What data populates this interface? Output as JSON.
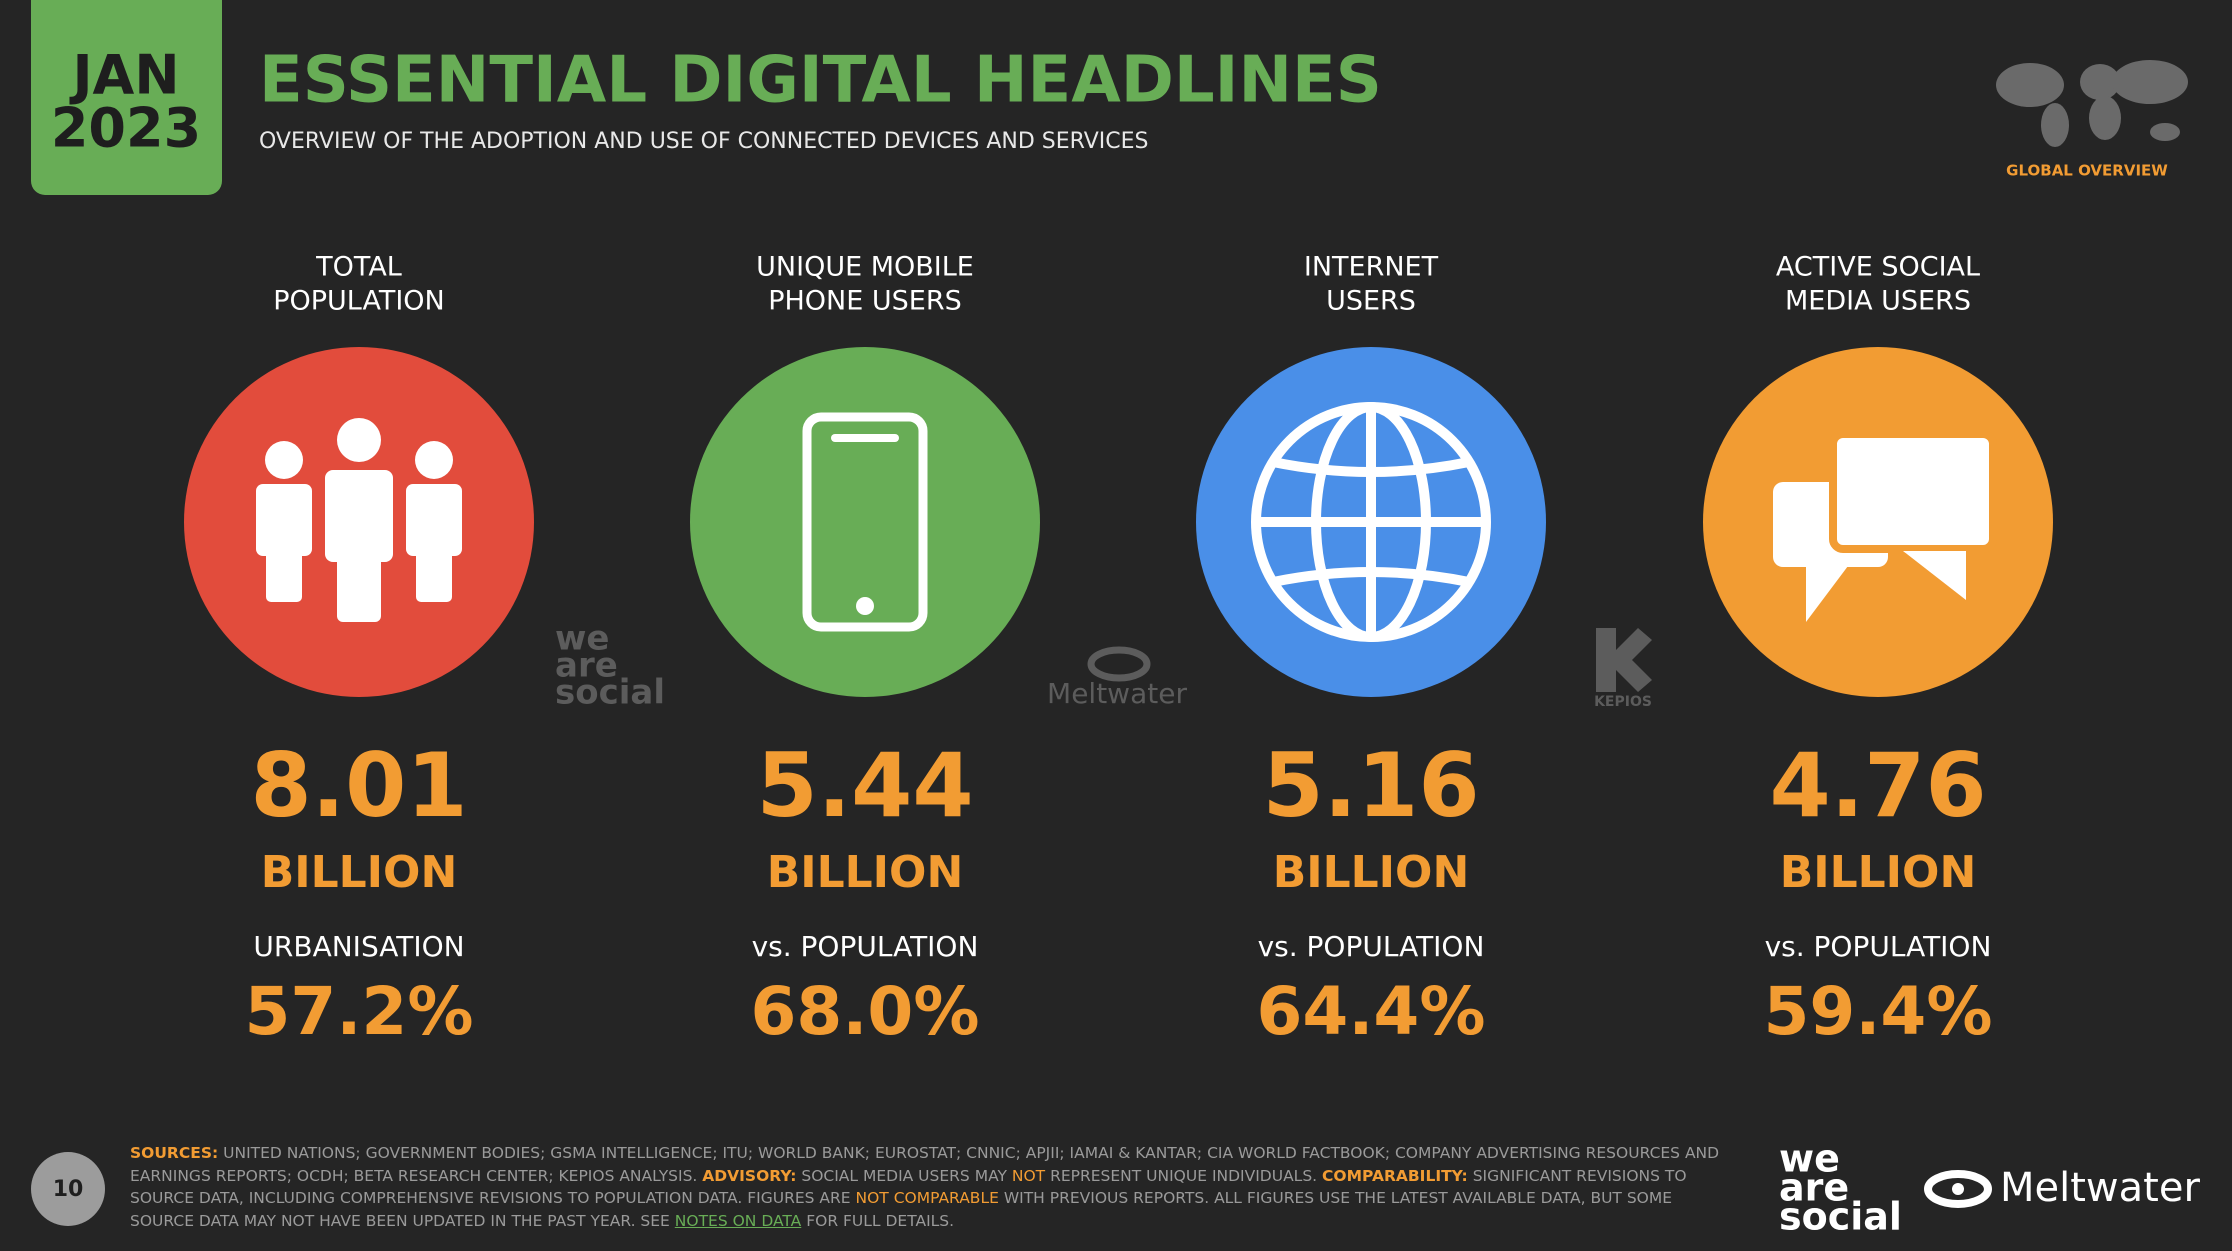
{
  "header": {
    "month": "JAN",
    "year": "2023",
    "title": "ESSENTIAL DIGITAL HEADLINES",
    "subtitle": "OVERVIEW OF THE ADOPTION AND USE OF CONNECTED DEVICES AND SERVICES",
    "region": "GLOBAL OVERVIEW"
  },
  "cards": [
    {
      "label": [
        "TOTAL",
        "POPULATION"
      ],
      "color": "#e24c3c",
      "value": "8.01",
      "unit": "BILLION",
      "sublabel": "URBANISATION",
      "percent": "57.2%"
    },
    {
      "label": [
        "UNIQUE MOBILE",
        "PHONE USERS"
      ],
      "color": "#68ad56",
      "value": "5.44",
      "unit": "BILLION",
      "sublabel": "vs. POPULATION",
      "percent": "68.0%"
    },
    {
      "label": [
        "INTERNET",
        "USERS"
      ],
      "color": "#4a8fe8",
      "value": "5.16",
      "unit": "BILLION",
      "sublabel": "vs. POPULATION",
      "percent": "64.4%"
    },
    {
      "label": [
        "ACTIVE SOCIAL",
        "MEDIA USERS"
      ],
      "color": "#f29c33",
      "value": "4.76",
      "unit": "BILLION",
      "sublabel": "vs. POPULATION",
      "percent": "59.4%"
    }
  ],
  "logos": {
    "wearesocial": [
      "we",
      "are",
      "social"
    ],
    "meltwater": "Meltwater",
    "kepios": "KEPIOS"
  },
  "footer": {
    "page": "10",
    "segments": [
      {
        "text": "SOURCES:",
        "style": "label"
      },
      {
        "text": "UNITED NATIONS; GOVERNMENT BODIES; GSMA INTELLIGENCE; ITU; WORLD BANK; EUROSTAT; CNNIC; APJII; IAMAI & KANTAR; CIA WORLD FACTBOOK; COMPANY ADVERTISING RESOURCES AND EARNINGS REPORTS; OCDH; BETA RESEARCH CENTER; KEPIOS ANALYSIS.",
        "style": "plain"
      },
      {
        "text": "ADVISORY:",
        "style": "label"
      },
      {
        "text": "SOCIAL MEDIA USERS MAY",
        "style": "plain"
      },
      {
        "text": "NOT",
        "style": "highlight"
      },
      {
        "text": "REPRESENT UNIQUE INDIVIDUALS.",
        "style": "plain"
      },
      {
        "text": "COMPARABILITY:",
        "style": "label"
      },
      {
        "text": "SIGNIFICANT REVISIONS TO SOURCE DATA, INCLUDING COMPREHENSIVE REVISIONS TO POPULATION DATA. FIGURES ARE",
        "style": "plain"
      },
      {
        "text": "NOT COMPARABLE",
        "style": "highlight"
      },
      {
        "text": "WITH PREVIOUS REPORTS. ALL FIGURES USE THE LATEST AVAILABLE DATA, BUT SOME SOURCE DATA MAY NOT HAVE BEEN UPDATED IN THE PAST YEAR. SEE",
        "style": "plain"
      },
      {
        "text": "NOTES ON DATA",
        "style": "link"
      },
      {
        "text": "FOR FULL DETAILS.",
        "style": "plain"
      }
    ]
  }
}
